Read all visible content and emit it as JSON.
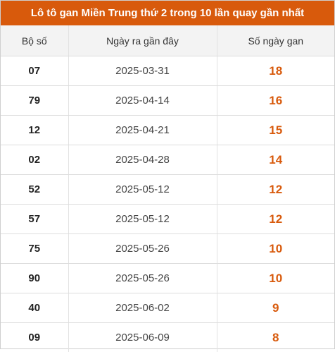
{
  "title": "Lô tô gan Miền Trung thứ 2 trong 10 lần quay gần nhất",
  "columns": [
    "Bộ số",
    "Ngày ra gần đây",
    "Số ngày gan"
  ],
  "rows": [
    {
      "number": "07",
      "date": "2025-03-31",
      "days": "18"
    },
    {
      "number": "79",
      "date": "2025-04-14",
      "days": "16"
    },
    {
      "number": "12",
      "date": "2025-04-21",
      "days": "15"
    },
    {
      "number": "02",
      "date": "2025-04-28",
      "days": "14"
    },
    {
      "number": "52",
      "date": "2025-05-12",
      "days": "12"
    },
    {
      "number": "57",
      "date": "2025-05-12",
      "days": "12"
    },
    {
      "number": "75",
      "date": "2025-05-26",
      "days": "10"
    },
    {
      "number": "90",
      "date": "2025-05-26",
      "days": "10"
    },
    {
      "number": "40",
      "date": "2025-06-02",
      "days": "9"
    },
    {
      "number": "09",
      "date": "2025-06-09",
      "days": "8"
    }
  ],
  "colors": {
    "accent": "#d85a0c",
    "header_bg": "#f3f3f3"
  }
}
